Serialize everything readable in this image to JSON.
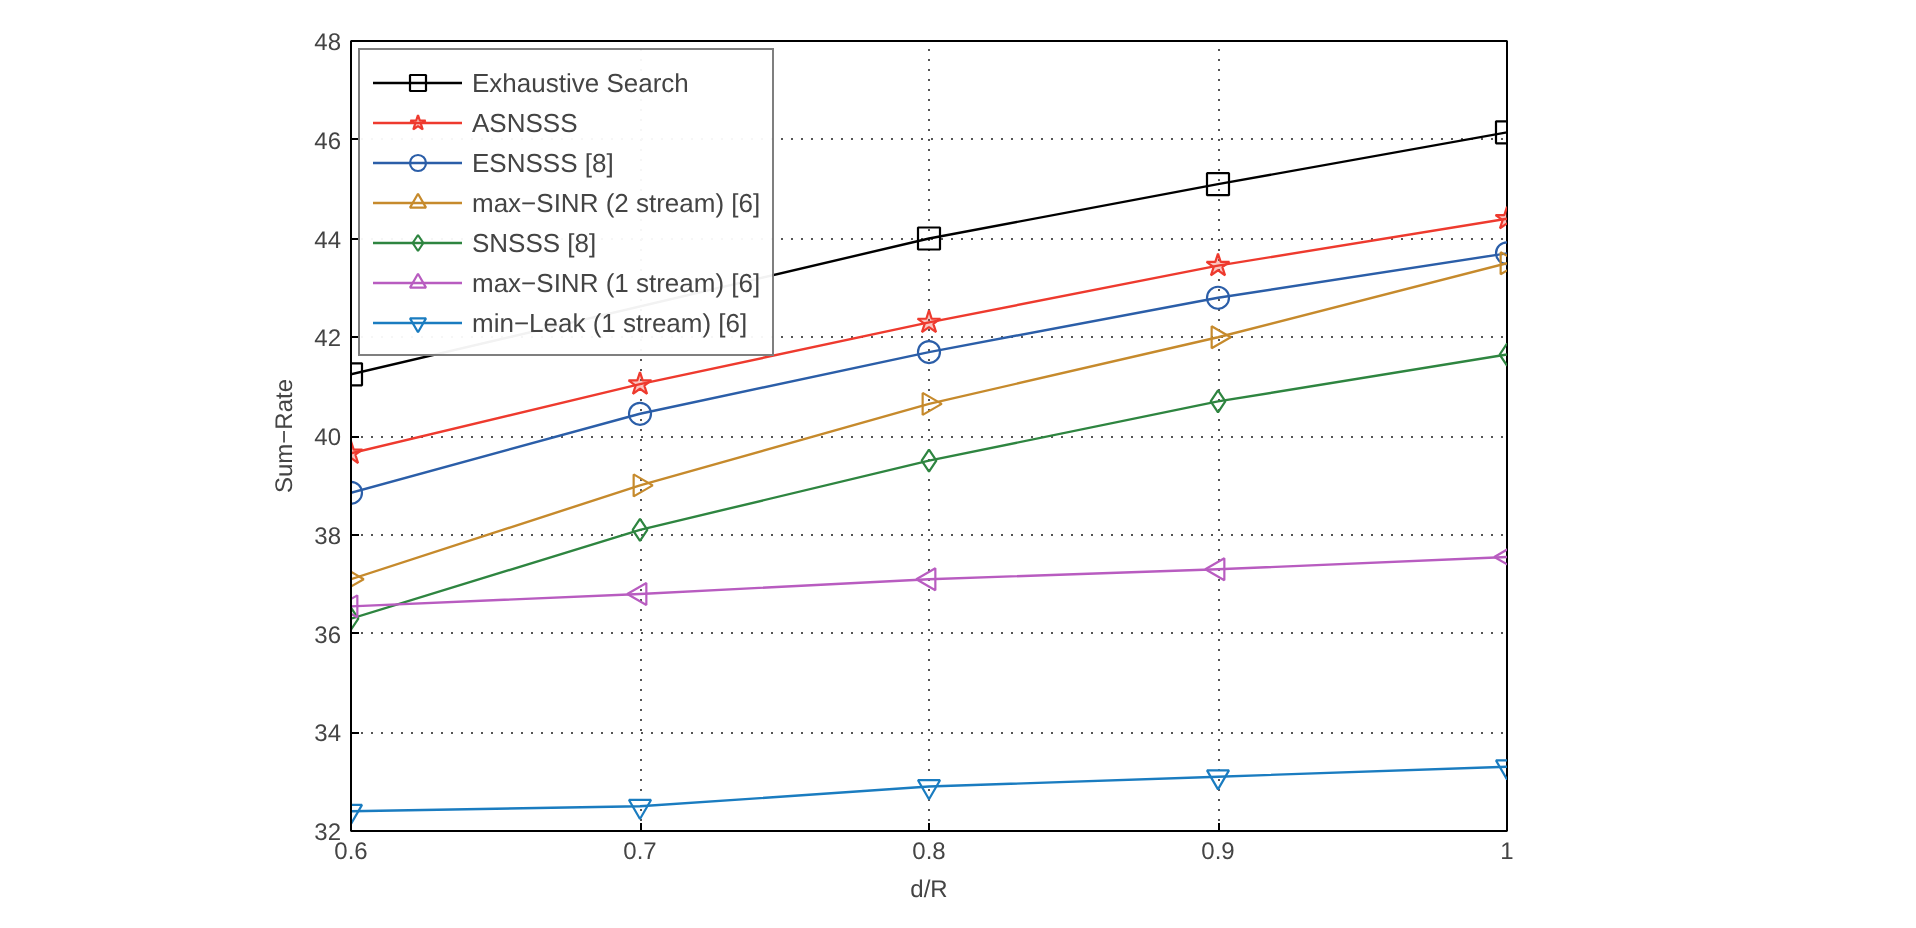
{
  "chart_data": {
    "type": "line",
    "xlabel": "d/R",
    "ylabel": "Sum−Rate",
    "x": [
      0.6,
      0.7,
      0.8,
      0.9,
      1.0
    ],
    "xlim": [
      0.6,
      1.0
    ],
    "xticks": [
      0.6,
      0.7,
      0.8,
      0.9,
      1
    ],
    "ylim": [
      32,
      48
    ],
    "yticks": [
      32,
      34,
      36,
      38,
      40,
      42,
      44,
      46,
      48
    ],
    "grid": true,
    "legend": "top left",
    "line_style": "solid",
    "series": [
      {
        "name": "Exhaustive Search",
        "color": "#000000",
        "marker": "square",
        "values": [
          41.25,
          null,
          44.0,
          45.1,
          46.15
        ]
      },
      {
        "name": "ASNSSS",
        "color": "#ee3a2e",
        "marker": "star",
        "values": [
          39.65,
          41.05,
          42.3,
          43.45,
          44.4
        ]
      },
      {
        "name": "ESNSSS [8]",
        "color": "#2b5ea8",
        "marker": "circle",
        "values": [
          38.85,
          40.45,
          41.7,
          42.8,
          43.7
        ]
      },
      {
        "name": "max−SINR (2 stream) [6]",
        "color": "#c68a2c",
        "marker": "triangle_right",
        "values": [
          37.1,
          39.0,
          40.65,
          42.0,
          43.5
        ]
      },
      {
        "name": "SNSSS [8]",
        "color": "#2e8540",
        "marker": "diamond",
        "values": [
          36.3,
          38.1,
          39.5,
          40.7,
          41.65
        ]
      },
      {
        "name": "max−SINR (1 stream) [6]",
        "color": "#b85cc0",
        "marker": "triangle_left",
        "values": [
          36.55,
          36.8,
          37.1,
          37.3,
          37.55
        ]
      },
      {
        "name": "min−Leak (1 stream) [6]",
        "color": "#1a7cc0",
        "marker": "triangle_down",
        "values": [
          32.4,
          32.5,
          32.9,
          33.1,
          33.3
        ]
      }
    ]
  }
}
